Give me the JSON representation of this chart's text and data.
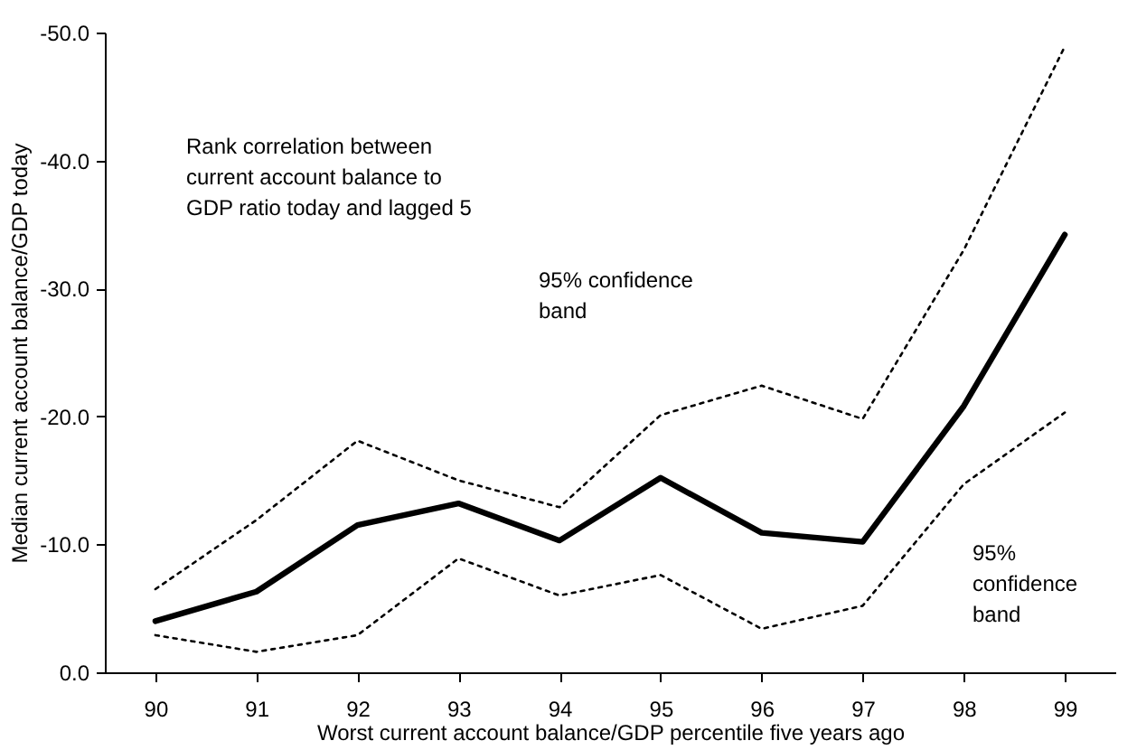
{
  "chart_data": {
    "type": "line",
    "xlabel": "Worst current account balance/GDP percentile five years ago",
    "ylabel": "Median current account balance/GDP today",
    "categories": [
      "90",
      "91",
      "92",
      "93",
      "94",
      "95",
      "96",
      "97",
      "98",
      "99"
    ],
    "series": [
      {
        "color": "#000000",
        "line_style": "solid",
        "values": [
          -4.0,
          -6.3,
          -11.5,
          -13.2,
          -10.3,
          -15.2,
          -10.9,
          -10.2,
          -20.8,
          -34.2
        ]
      },
      {
        "color": "#000000",
        "line_style": "dotted",
        "values": [
          -6.5,
          -11.9,
          -18.1,
          -15.0,
          -12.9,
          -20.1,
          -22.4,
          -19.8,
          -33.0,
          -48.9
        ]
      },
      {
        "color": "#000000",
        "line_style": "dotted",
        "values": [
          -2.9,
          -1.6,
          -2.9,
          -8.9,
          -6.0,
          -7.6,
          -3.4,
          -5.2,
          -14.7,
          -20.3
        ]
      }
    ],
    "ylim": [
      0,
      -50
    ],
    "yticks": [
      {
        "value": 0,
        "label": "0.0"
      },
      {
        "value": -10,
        "label": "-10.0"
      },
      {
        "value": -20,
        "label": "-20.0"
      },
      {
        "value": -30,
        "label": "-30.0"
      },
      {
        "value": -40,
        "label": "-40.0"
      },
      {
        "value": -50,
        "label": "-50.0"
      }
    ],
    "marker": "none",
    "annotations": [
      "Rank correlation between\ncurrent account balance to\nGDP ratio today and lagged 5",
      "95% confidence\nband",
      "95%\nconfidence\nband"
    ]
  }
}
